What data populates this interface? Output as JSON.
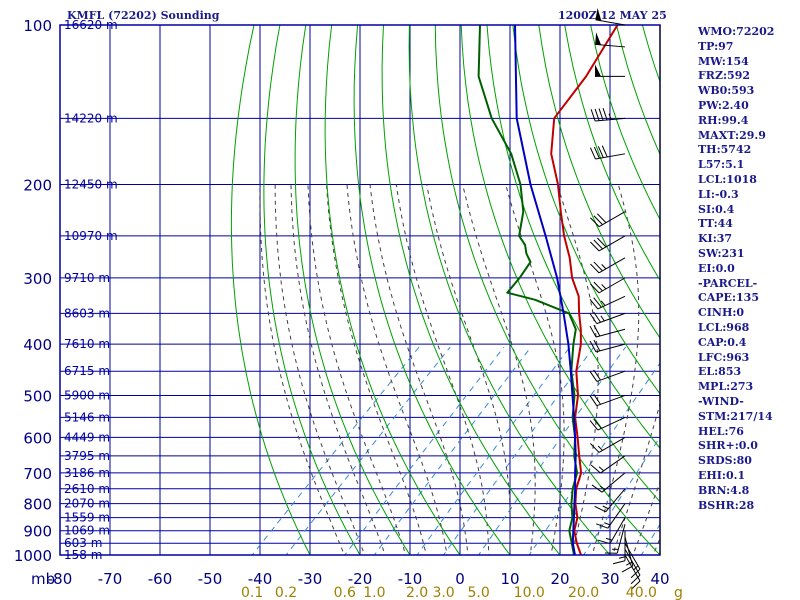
{
  "title": {
    "station": "KMFL (72202) Sounding",
    "time": "1200Z 12 MAY 25"
  },
  "stats": [
    "WMO:72202",
    "TP:97",
    "MW:154",
    "FRZ:592",
    "WB0:593",
    "PW:2.40",
    "RH:99.4",
    "MAXT:29.9",
    "TH:5742",
    "L57:5.1",
    "LCL:1018",
    "LI:-0.3",
    "SI:0.4",
    "TT:44",
    "KI:37",
    "SW:231",
    "EI:0.0",
    "-PARCEL-",
    "CAPE:135",
    "CINH:0",
    "LCL:968",
    "CAP:0.4",
    "LFC:963",
    "EL:853",
    "MPL:273",
    "-WIND-",
    "STM:217/14",
    "HEL:76",
    "SHR+:0.0",
    "SRDS:80",
    "EHI:0.1",
    "BRN:4.8",
    "BSHR:28"
  ],
  "colors": {
    "grid": "#0000a0",
    "dry_adiabat": "#00a000",
    "moist_adiabat": "#404040",
    "mixing_ratio": "#3a8ad8",
    "temperature": "#c00000",
    "dewpoint": "#006000",
    "parcel": "#0000c0",
    "axis_text": "#000080",
    "mixing_text": "#a08000"
  },
  "chart_data": {
    "type": "line",
    "diagram": "skew-T log-P",
    "xlim": [
      -80,
      40
    ],
    "ylim": [
      1000,
      100
    ],
    "y_scale": "log",
    "grid": true,
    "xlabel": "mb",
    "x_ticks": [
      -80,
      -70,
      -60,
      -50,
      -40,
      -30,
      -20,
      -10,
      0,
      10,
      20,
      30,
      40
    ],
    "y_ticks": [
      100,
      200,
      300,
      400,
      500,
      600,
      700,
      800,
      900,
      1000
    ],
    "height_labels": [
      {
        "p": 100,
        "text": "16620 m"
      },
      {
        "p": 150,
        "text": "14220 m"
      },
      {
        "p": 200,
        "text": "12450 m"
      },
      {
        "p": 250,
        "text": "10970 m"
      },
      {
        "p": 300,
        "text": "9710 m"
      },
      {
        "p": 350,
        "text": "8603 m"
      },
      {
        "p": 400,
        "text": "7610 m"
      },
      {
        "p": 450,
        "text": "6715 m"
      },
      {
        "p": 500,
        "text": "5900 m"
      },
      {
        "p": 550,
        "text": "5146 m"
      },
      {
        "p": 600,
        "text": "4449 m"
      },
      {
        "p": 650,
        "text": "3795 m"
      },
      {
        "p": 700,
        "text": "3186 m"
      },
      {
        "p": 750,
        "text": "2610 m"
      },
      {
        "p": 800,
        "text": "2070 m"
      },
      {
        "p": 850,
        "text": "1559 m"
      },
      {
        "p": 900,
        "text": "1069 m"
      },
      {
        "p": 950,
        "text": "603 m"
      },
      {
        "p": 1000,
        "text": "158 m"
      }
    ],
    "mixing_ratio_labels": [
      {
        "w": 0.1,
        "text": "0.1"
      },
      {
        "w": 0.2,
        "text": "0.2"
      },
      {
        "w": 0.6,
        "text": "0.6"
      },
      {
        "w": 1.0,
        "text": "1.0"
      },
      {
        "w": 2.0,
        "text": "2.0"
      },
      {
        "w": 3.0,
        "text": "3.0"
      },
      {
        "w": 5.0,
        "text": "5.0"
      },
      {
        "w": 10.0,
        "text": "10.0"
      },
      {
        "w": 20.0,
        "text": "20.0"
      },
      {
        "w": 40.0,
        "text": "40.0"
      }
    ],
    "mixing_ratio_unit": "g",
    "series": [
      {
        "key": "temperature",
        "p": [
          1010,
          1000,
          950,
          900,
          850,
          800,
          750,
          700,
          650,
          600,
          550,
          500,
          450,
          400,
          375,
          350,
          325,
          300,
          275,
          250,
          225,
          200,
          175,
          150,
          125,
          100
        ],
        "t": [
          25.0,
          24.2,
          21.0,
          18.0,
          16.0,
          12.8,
          10.0,
          7.8,
          4.0,
          0.0,
          -4.5,
          -8.3,
          -13.5,
          -18.0,
          -21.0,
          -24.5,
          -28.0,
          -33.0,
          -37.5,
          -43.0,
          -48.5,
          -54.5,
          -62.0,
          -68.5,
          -70.5,
          -74.5
        ]
      },
      {
        "key": "dewpoint",
        "p": [
          1010,
          1000,
          950,
          900,
          850,
          800,
          750,
          700,
          650,
          600,
          550,
          500,
          450,
          400,
          375,
          350,
          330,
          320,
          300,
          280,
          270,
          260,
          250,
          225,
          200,
          175,
          150,
          125,
          100
        ],
        "t": [
          23.5,
          22.8,
          20.0,
          17.0,
          15.0,
          12.0,
          9.3,
          7.0,
          3.0,
          -0.5,
          -5.0,
          -9.0,
          -14.5,
          -19.5,
          -22.0,
          -26.5,
          -36.0,
          -43.0,
          -43.5,
          -44.5,
          -47.0,
          -49.0,
          -52.0,
          -56.0,
          -62.0,
          -70.0,
          -81.0,
          -92.0,
          -102.0
        ]
      },
      {
        "key": "parcel",
        "p": [
          1010,
          1000,
          950,
          900,
          850,
          800,
          750,
          700,
          650,
          600,
          550,
          500,
          450,
          400,
          350,
          300,
          250,
          200,
          150,
          100
        ],
        "t": [
          23.5,
          23.0,
          20.2,
          17.8,
          15.3,
          12.6,
          9.8,
          6.6,
          3.3,
          -0.5,
          -4.7,
          -9.4,
          -14.6,
          -20.5,
          -27.6,
          -36.0,
          -46.7,
          -60.0,
          -76.0,
          -95.0
        ]
      }
    ],
    "winds": [
      {
        "p": 1000,
        "dir": 150,
        "spd": 10
      },
      {
        "p": 975,
        "dir": 150,
        "spd": 10
      },
      {
        "p": 950,
        "dir": 150,
        "spd": 15
      },
      {
        "p": 925,
        "dir": 165,
        "spd": 15
      },
      {
        "p": 900,
        "dir": 180,
        "spd": 15
      },
      {
        "p": 875,
        "dir": 195,
        "spd": 15
      },
      {
        "p": 850,
        "dir": 210,
        "spd": 15
      },
      {
        "p": 800,
        "dir": 215,
        "spd": 15
      },
      {
        "p": 750,
        "dir": 220,
        "spd": 15
      },
      {
        "p": 700,
        "dir": 230,
        "spd": 15
      },
      {
        "p": 650,
        "dir": 235,
        "spd": 15
      },
      {
        "p": 600,
        "dir": 240,
        "spd": 15
      },
      {
        "p": 550,
        "dir": 245,
        "spd": 20
      },
      {
        "p": 500,
        "dir": 250,
        "spd": 20
      },
      {
        "p": 450,
        "dir": 250,
        "spd": 20
      },
      {
        "p": 400,
        "dir": 255,
        "spd": 20
      },
      {
        "p": 375,
        "dir": 255,
        "spd": 20
      },
      {
        "p": 350,
        "dir": 250,
        "spd": 25
      },
      {
        "p": 325,
        "dir": 245,
        "spd": 25
      },
      {
        "p": 300,
        "dir": 240,
        "spd": 25
      },
      {
        "p": 275,
        "dir": 240,
        "spd": 25
      },
      {
        "p": 250,
        "dir": 240,
        "spd": 30
      },
      {
        "p": 225,
        "dir": 240,
        "spd": 30
      },
      {
        "p": 175,
        "dir": 260,
        "spd": 40
      },
      {
        "p": 150,
        "dir": 265,
        "spd": 45
      },
      {
        "p": 125,
        "dir": 270,
        "spd": 50
      },
      {
        "p": 110,
        "dir": 275,
        "spd": 50
      },
      {
        "p": 100,
        "dir": 280,
        "spd": 50
      }
    ]
  }
}
